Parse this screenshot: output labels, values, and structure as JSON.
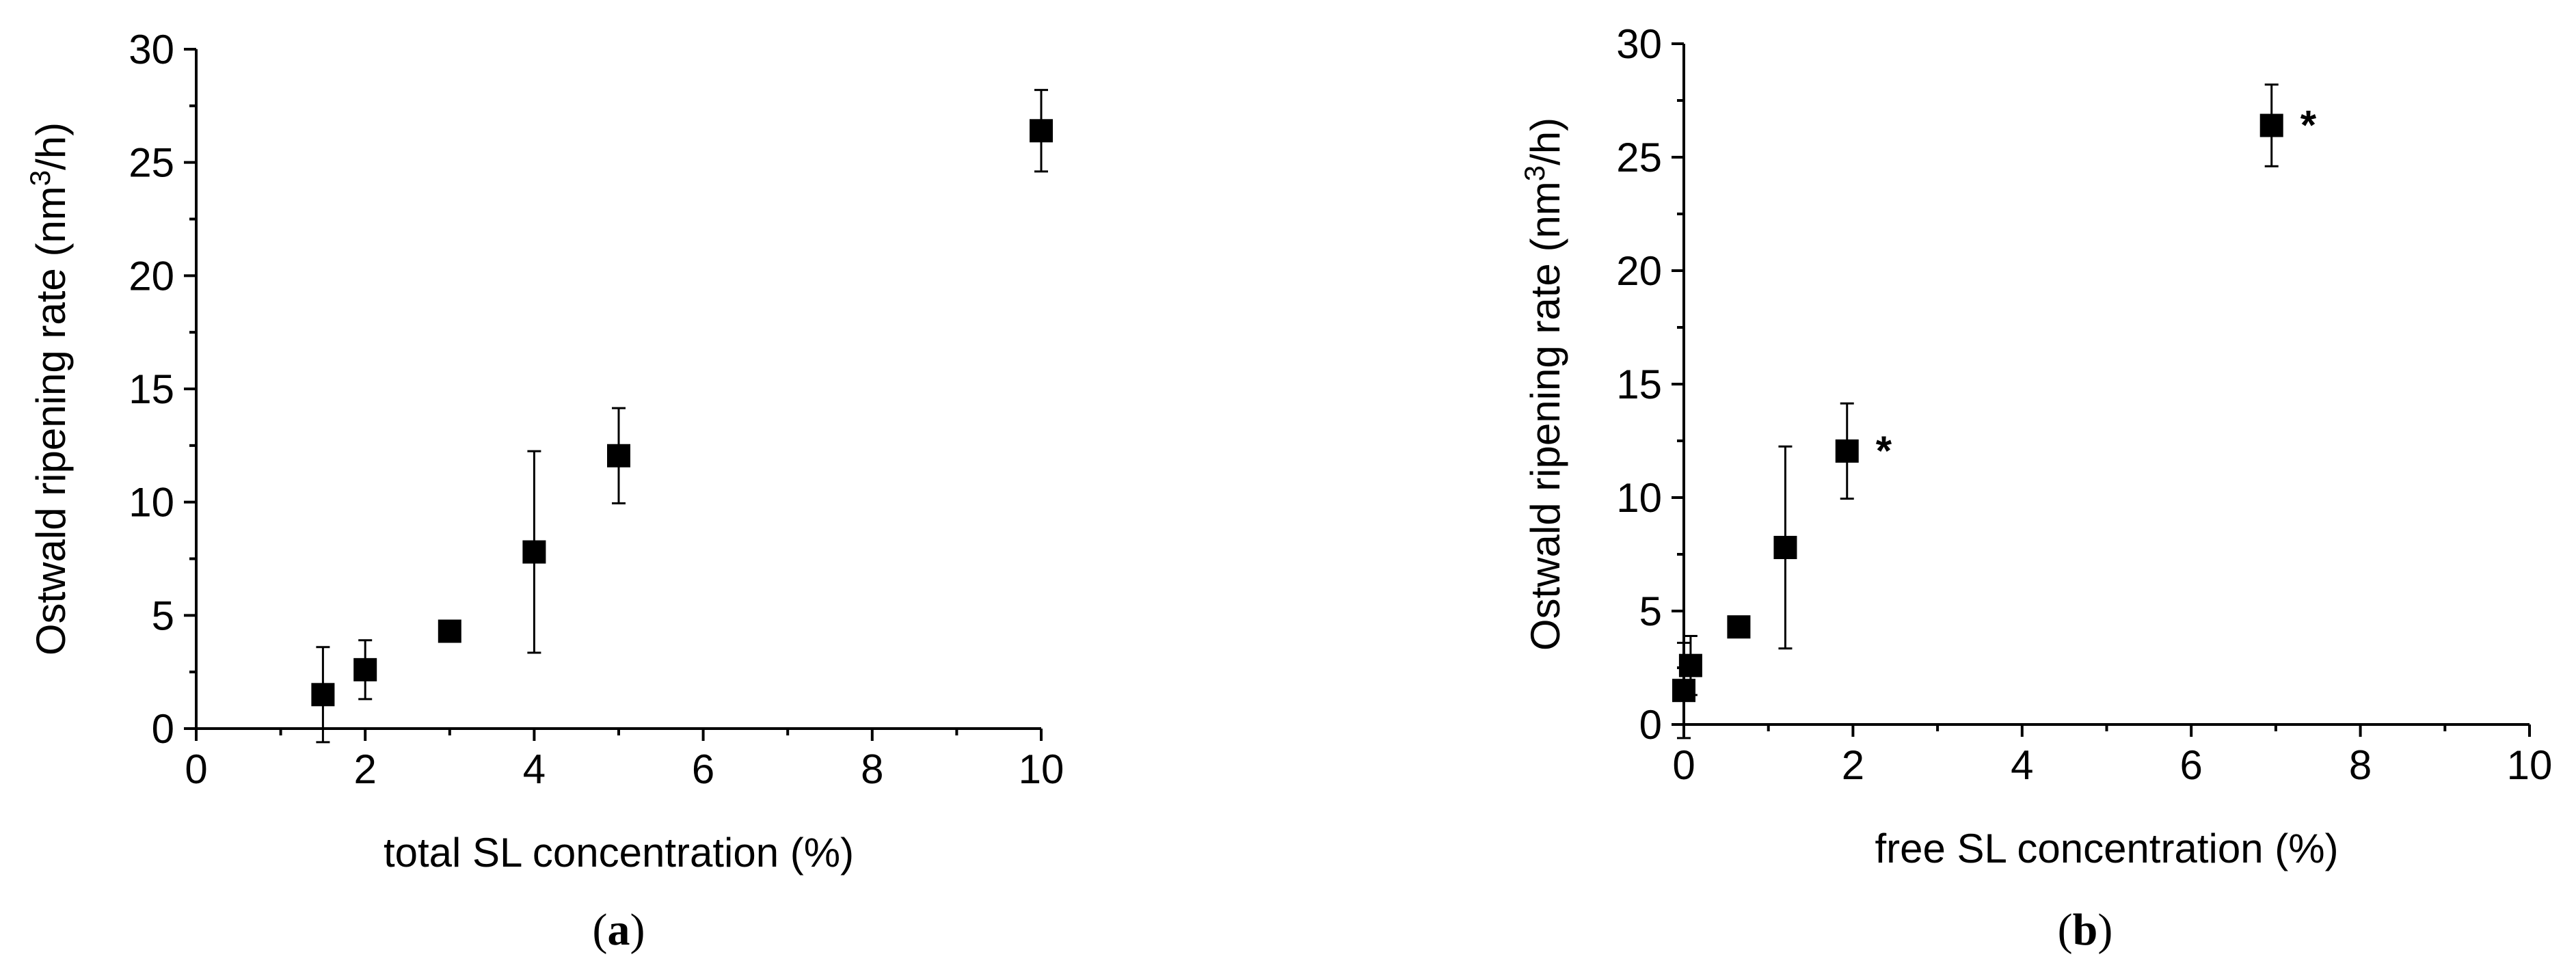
{
  "chart_data": [
    {
      "type": "scatter",
      "panel_label": "a",
      "xlabel": "total SL concentration (%)",
      "ylabel_main": "Ostwald ripening rate (nm",
      "ylabel_sup": "3",
      "ylabel_end": "/h)",
      "xlim": [
        0,
        10
      ],
      "ylim": [
        0,
        30
      ],
      "xticks": [
        0,
        2,
        4,
        6,
        8,
        10
      ],
      "yticks": [
        0,
        5,
        10,
        15,
        20,
        25,
        30
      ],
      "grid": false,
      "series": [
        {
          "marker": "square",
          "points": [
            {
              "x": 1.5,
              "y": 1.5,
              "err": 2.1
            },
            {
              "x": 2,
              "y": 2.6,
              "err": 1.3
            },
            {
              "x": 3,
              "y": 4.3,
              "err": 0
            },
            {
              "x": 4,
              "y": 7.8,
              "err": 4.45
            },
            {
              "x": 5,
              "y": 12.05,
              "err": 2.1
            },
            {
              "x": 10,
              "y": 26.4,
              "err": 1.8
            }
          ]
        }
      ],
      "annotations": []
    },
    {
      "type": "scatter",
      "panel_label": "b",
      "xlabel": "free SL concentration (%)",
      "ylabel_main": "Ostwald ripening rate (nm",
      "ylabel_sup": "3",
      "ylabel_end": "/h)",
      "xlim": [
        0,
        10
      ],
      "ylim": [
        0,
        30
      ],
      "xticks": [
        0,
        2,
        4,
        6,
        8,
        10
      ],
      "yticks": [
        0,
        5,
        10,
        15,
        20,
        25,
        30
      ],
      "grid": false,
      "series": [
        {
          "marker": "square",
          "points": [
            {
              "x": 0,
              "y": 1.5,
              "err": 2.1
            },
            {
              "x": 0.08,
              "y": 2.6,
              "err": 1.3
            },
            {
              "x": 0.65,
              "y": 4.3,
              "err": 0
            },
            {
              "x": 1.2,
              "y": 7.8,
              "err": 4.45
            },
            {
              "x": 1.93,
              "y": 12.05,
              "err": 2.1
            },
            {
              "x": 6.95,
              "y": 26.4,
              "err": 1.8
            }
          ]
        }
      ],
      "annotations": [
        {
          "text": "*",
          "x": 1.93,
          "y": 12.05
        },
        {
          "text": "*",
          "x": 6.95,
          "y": 26.4
        }
      ]
    }
  ]
}
